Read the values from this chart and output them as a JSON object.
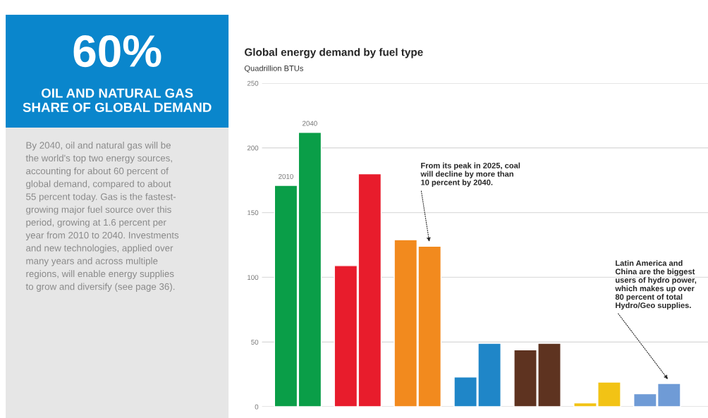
{
  "chart_data": [
    {
      "type": "other",
      "title": "60%",
      "subtitle": "OIL AND NATURAL GAS\nSHARE OF GLOBAL DEMAND",
      "annotations": [
        "By 2040, oil and natural gas will be\nthe world's top two energy sources,\naccounting for about 60 percent of\nglobal demand, compared to about\n55 percent today. Gas is the fastest-\ngrowing major fuel source over this\nperiod, growing at 1.6 percent per\nyear from 2010 to 2040. Investments\nand new technologies, applied over\nmany years and across multiple\nregions, will enable energy supplies\nto grow and diversify (see page 36)."
      ]
    },
    {
      "type": "bar",
      "title": "Global energy demand by fuel type",
      "ylabel": "Quadrillion BTUs",
      "categories": [
        null,
        null,
        null,
        null,
        null,
        null,
        null
      ],
      "series": [
        {
          "name": "2010",
          "colors": [
            "#0a9e48",
            "#e81c2c",
            "#f28a1e",
            "#1f86c8",
            "#5e3320",
            "#f2c315",
            "#6f9bd6"
          ],
          "values": [
            171,
            109,
            129,
            23,
            44,
            3,
            10
          ]
        },
        {
          "name": "2040",
          "colors": [
            "#0a9e48",
            "#e81c2c",
            "#f28a1e",
            "#1f86c8",
            "#5e3320",
            "#f2c315",
            "#6f9bd6"
          ],
          "values": [
            212,
            180,
            124,
            49,
            49,
            19,
            18
          ]
        }
      ],
      "ylim": [
        0,
        250
      ],
      "yticks": [
        0,
        50,
        100,
        150,
        200,
        250
      ],
      "grid": "y",
      "legend": false,
      "annotations": [
        "From its peak in 2025, coal\nwill decline by more than\n10 percent by 2040.",
        "Latin America and\nChina are the biggest\nusers of hydro power,\nwhich makes up over\n80 percent of total\nHydro/Geo supplies."
      ]
    }
  ]
}
